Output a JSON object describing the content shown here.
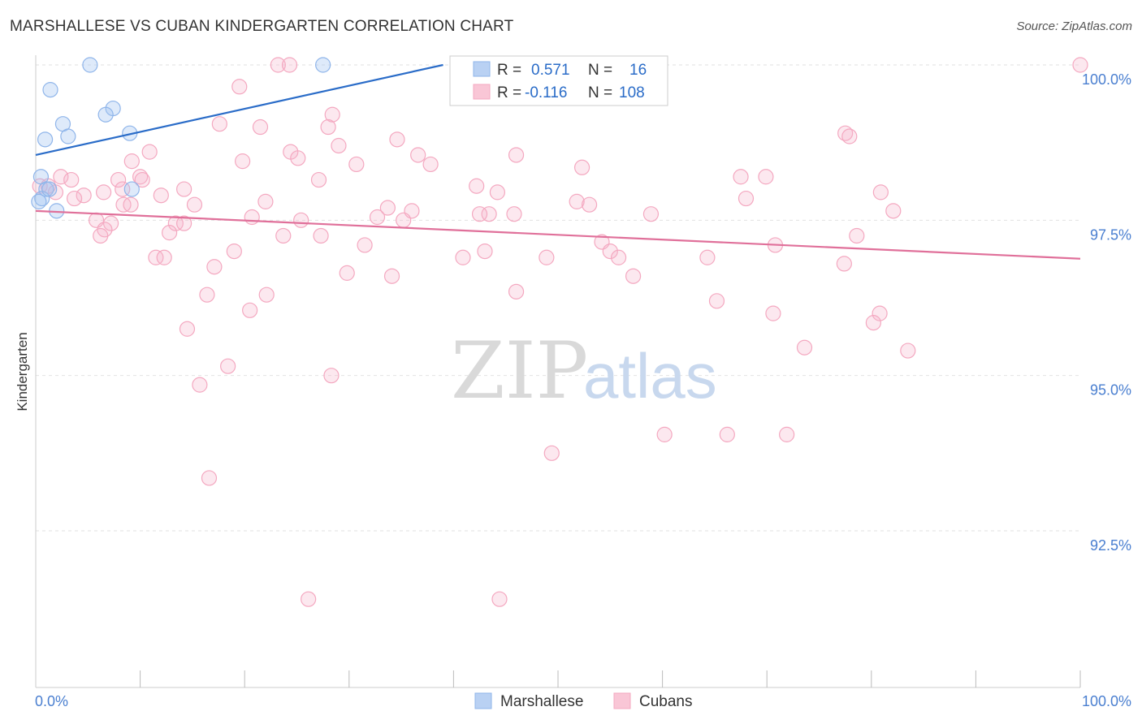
{
  "title": "MARSHALLESE VS CUBAN KINDERGARTEN CORRELATION CHART",
  "source": "Source: ZipAtlas.com",
  "watermark": {
    "zip": "ZIP",
    "atlas": "atlas"
  },
  "chart_data": {
    "type": "scatter",
    "xlabel": "",
    "ylabel": "Kindergarten",
    "xlim": [
      0,
      100
    ],
    "ylim": [
      90.0,
      100.3
    ],
    "x_tick_labels": [
      {
        "value": 0,
        "label": "0.0%"
      },
      {
        "value": 100,
        "label": "100.0%"
      }
    ],
    "x_minor_ticks": [
      10,
      20,
      30,
      40,
      50,
      60,
      70,
      80,
      90,
      100
    ],
    "y_ticks": [
      {
        "value": 100.0,
        "label": "100.0%"
      },
      {
        "value": 97.5,
        "label": "97.5%"
      },
      {
        "value": 95.0,
        "label": "95.0%"
      },
      {
        "value": 92.5,
        "label": "92.5%"
      }
    ],
    "legend_box": [
      {
        "series": "Marshallese",
        "r_label": "R =",
        "r_value": "0.571",
        "n_label": "N =",
        "n_value": "16"
      },
      {
        "series": "Cubans",
        "r_label": "R =",
        "r_value": "-0.116",
        "n_label": "N =",
        "n_value": "108"
      }
    ],
    "series": [
      {
        "name": "Marshallese",
        "color": "#8fb5ea",
        "line_color": "#2a6cc8",
        "trend": {
          "x": [
            0,
            39
          ],
          "y": [
            98.55,
            100.0
          ]
        },
        "points": [
          {
            "x": 5.2,
            "y": 100.0
          },
          {
            "x": 27.5,
            "y": 100.0
          },
          {
            "x": 1.4,
            "y": 99.6
          },
          {
            "x": 7.4,
            "y": 99.3
          },
          {
            "x": 6.7,
            "y": 99.2
          },
          {
            "x": 2.6,
            "y": 99.05
          },
          {
            "x": 3.1,
            "y": 98.85
          },
          {
            "x": 9.0,
            "y": 98.9
          },
          {
            "x": 0.9,
            "y": 98.8
          },
          {
            "x": 0.5,
            "y": 98.2
          },
          {
            "x": 1.0,
            "y": 98.0
          },
          {
            "x": 0.6,
            "y": 97.85
          },
          {
            "x": 0.3,
            "y": 97.8
          },
          {
            "x": 9.2,
            "y": 98.0
          },
          {
            "x": 2.0,
            "y": 97.65
          },
          {
            "x": 1.3,
            "y": 98.0
          }
        ]
      },
      {
        "name": "Cubans",
        "color": "#f4a8c0",
        "line_color": "#e0709a",
        "trend": {
          "x": [
            0,
            100
          ],
          "y": [
            97.65,
            96.88
          ]
        },
        "points": [
          {
            "x": 23.2,
            "y": 100.0
          },
          {
            "x": 24.3,
            "y": 100.0
          },
          {
            "x": 100.0,
            "y": 100.0
          },
          {
            "x": 19.5,
            "y": 99.65
          },
          {
            "x": 28.4,
            "y": 99.2
          },
          {
            "x": 17.6,
            "y": 99.05
          },
          {
            "x": 21.5,
            "y": 99.0
          },
          {
            "x": 28.0,
            "y": 99.0
          },
          {
            "x": 34.6,
            "y": 98.8
          },
          {
            "x": 29.0,
            "y": 98.7
          },
          {
            "x": 10.9,
            "y": 98.6
          },
          {
            "x": 24.4,
            "y": 98.6
          },
          {
            "x": 36.6,
            "y": 98.55
          },
          {
            "x": 46.0,
            "y": 98.55
          },
          {
            "x": 25.1,
            "y": 98.5
          },
          {
            "x": 9.2,
            "y": 98.45
          },
          {
            "x": 19.8,
            "y": 98.45
          },
          {
            "x": 30.7,
            "y": 98.4
          },
          {
            "x": 37.8,
            "y": 98.4
          },
          {
            "x": 52.3,
            "y": 98.35
          },
          {
            "x": 77.5,
            "y": 98.9
          },
          {
            "x": 77.9,
            "y": 98.85
          },
          {
            "x": 67.5,
            "y": 98.2
          },
          {
            "x": 69.9,
            "y": 98.2
          },
          {
            "x": 2.4,
            "y": 98.2
          },
          {
            "x": 3.4,
            "y": 98.15
          },
          {
            "x": 7.9,
            "y": 98.15
          },
          {
            "x": 10.0,
            "y": 98.2
          },
          {
            "x": 10.2,
            "y": 98.15
          },
          {
            "x": 27.1,
            "y": 98.15
          },
          {
            "x": 42.2,
            "y": 98.05
          },
          {
            "x": 14.2,
            "y": 98.0
          },
          {
            "x": 44.2,
            "y": 97.95
          },
          {
            "x": 1.9,
            "y": 97.95
          },
          {
            "x": 0.4,
            "y": 98.05
          },
          {
            "x": 1.2,
            "y": 98.05
          },
          {
            "x": 6.5,
            "y": 97.95
          },
          {
            "x": 4.6,
            "y": 97.9
          },
          {
            "x": 12.0,
            "y": 97.9
          },
          {
            "x": 3.7,
            "y": 97.85
          },
          {
            "x": 22.0,
            "y": 97.8
          },
          {
            "x": 8.4,
            "y": 97.75
          },
          {
            "x": 15.2,
            "y": 97.75
          },
          {
            "x": 9.1,
            "y": 97.75
          },
          {
            "x": 33.7,
            "y": 97.7
          },
          {
            "x": 36.0,
            "y": 97.65
          },
          {
            "x": 51.8,
            "y": 97.8
          },
          {
            "x": 53.0,
            "y": 97.75
          },
          {
            "x": 80.9,
            "y": 97.95
          },
          {
            "x": 68.0,
            "y": 97.85
          },
          {
            "x": 82.1,
            "y": 97.65
          },
          {
            "x": 43.4,
            "y": 97.6
          },
          {
            "x": 42.5,
            "y": 97.6
          },
          {
            "x": 45.8,
            "y": 97.6
          },
          {
            "x": 58.9,
            "y": 97.6
          },
          {
            "x": 32.7,
            "y": 97.55
          },
          {
            "x": 20.7,
            "y": 97.55
          },
          {
            "x": 5.8,
            "y": 97.5
          },
          {
            "x": 25.4,
            "y": 97.5
          },
          {
            "x": 35.2,
            "y": 97.5
          },
          {
            "x": 13.4,
            "y": 97.45
          },
          {
            "x": 14.2,
            "y": 97.45
          },
          {
            "x": 7.2,
            "y": 97.45
          },
          {
            "x": 6.6,
            "y": 97.35
          },
          {
            "x": 12.8,
            "y": 97.3
          },
          {
            "x": 6.2,
            "y": 97.25
          },
          {
            "x": 23.7,
            "y": 97.25
          },
          {
            "x": 27.3,
            "y": 97.25
          },
          {
            "x": 78.6,
            "y": 97.25
          },
          {
            "x": 54.2,
            "y": 97.15
          },
          {
            "x": 31.5,
            "y": 97.1
          },
          {
            "x": 70.8,
            "y": 97.1
          },
          {
            "x": 19.0,
            "y": 97.0
          },
          {
            "x": 43.0,
            "y": 97.0
          },
          {
            "x": 55.0,
            "y": 97.0
          },
          {
            "x": 11.5,
            "y": 96.9
          },
          {
            "x": 12.3,
            "y": 96.9
          },
          {
            "x": 40.9,
            "y": 96.9
          },
          {
            "x": 48.9,
            "y": 96.9
          },
          {
            "x": 55.8,
            "y": 96.9
          },
          {
            "x": 64.3,
            "y": 96.9
          },
          {
            "x": 77.4,
            "y": 96.8
          },
          {
            "x": 17.1,
            "y": 96.75
          },
          {
            "x": 29.8,
            "y": 96.65
          },
          {
            "x": 34.1,
            "y": 96.6
          },
          {
            "x": 57.2,
            "y": 96.6
          },
          {
            "x": 16.4,
            "y": 96.3
          },
          {
            "x": 22.1,
            "y": 96.3
          },
          {
            "x": 46.0,
            "y": 96.35
          },
          {
            "x": 65.2,
            "y": 96.2
          },
          {
            "x": 20.5,
            "y": 96.05
          },
          {
            "x": 70.6,
            "y": 96.0
          },
          {
            "x": 80.8,
            "y": 96.0
          },
          {
            "x": 14.5,
            "y": 95.75
          },
          {
            "x": 80.2,
            "y": 95.85
          },
          {
            "x": 83.5,
            "y": 95.4
          },
          {
            "x": 73.6,
            "y": 95.45
          },
          {
            "x": 18.4,
            "y": 95.15
          },
          {
            "x": 28.3,
            "y": 95.0
          },
          {
            "x": 15.7,
            "y": 94.85
          },
          {
            "x": 49.4,
            "y": 93.75
          },
          {
            "x": 66.2,
            "y": 94.05
          },
          {
            "x": 16.6,
            "y": 93.35
          },
          {
            "x": 26.1,
            "y": 91.4
          },
          {
            "x": 44.4,
            "y": 91.4
          },
          {
            "x": 71.9,
            "y": 94.05
          },
          {
            "x": 60.2,
            "y": 94.05
          },
          {
            "x": 8.3,
            "y": 98.0
          }
        ]
      }
    ]
  }
}
